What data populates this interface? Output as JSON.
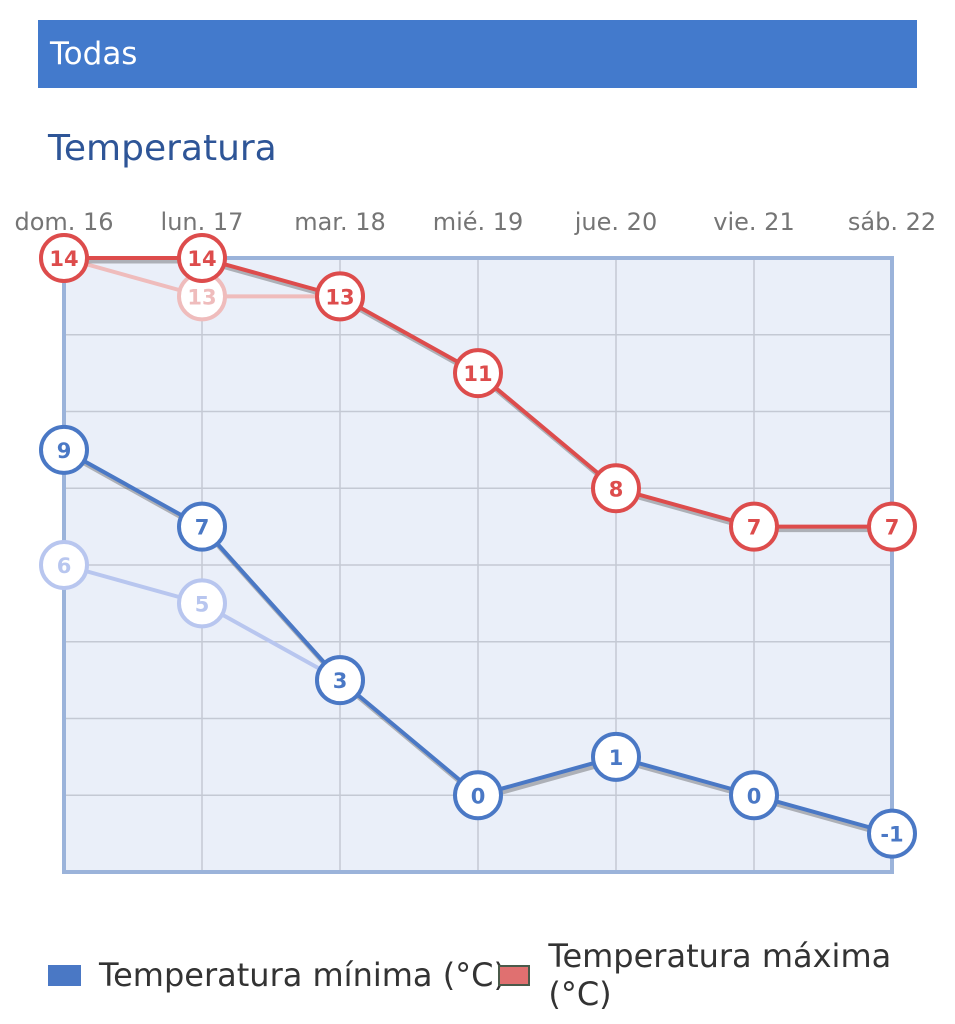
{
  "header": {
    "title": "Todas"
  },
  "colors": {
    "header_bg": "#437acc",
    "plot_bg": "#eaeff9",
    "plot_border": "#9bb3da",
    "min_series": "#4a78c5",
    "max_series": "#dd4c4c",
    "min_series_faded": "#b8c6ef",
    "max_series_faded": "#efbcbc"
  },
  "chart_data": {
    "type": "line",
    "title": "Temperatura",
    "categories": [
      "dom. 16",
      "lun. 17",
      "mar. 18",
      "mié. 19",
      "jue. 20",
      "vie. 21",
      "sáb. 22"
    ],
    "ylim": [
      -2,
      14
    ],
    "grid": true,
    "legend_position": "bottom",
    "series": [
      {
        "name": "Temperatura mínima (°C)",
        "values": [
          9,
          7,
          3,
          0,
          1,
          0,
          -1
        ],
        "color": "#4a78c5"
      },
      {
        "name": "Temperatura máxima (°C)",
        "values": [
          14,
          14,
          13,
          11,
          8,
          7,
          7
        ],
        "color": "#dd4c4c"
      }
    ],
    "previous_series": [
      {
        "values": [
          6,
          5,
          3
        ],
        "color": "#b8c6ef"
      },
      {
        "values": [
          14,
          13,
          13
        ],
        "color": "#efbcbc"
      }
    ]
  }
}
